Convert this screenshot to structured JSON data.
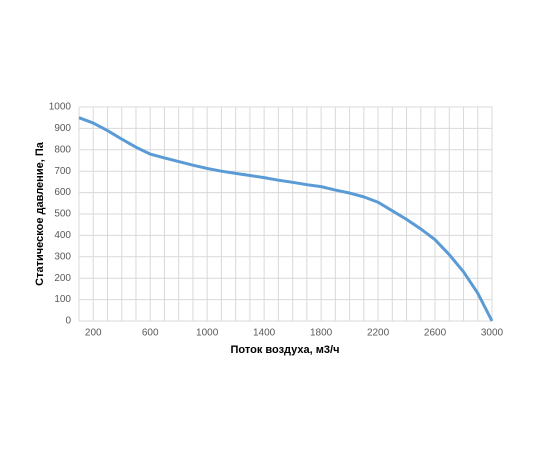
{
  "chart_data": {
    "type": "line",
    "x_label": "Поток воздуха, м3/ч",
    "y_label": "Статическое давление, Па",
    "x": [
      100,
      200,
      300,
      400,
      500,
      600,
      700,
      800,
      900,
      1000,
      1100,
      1200,
      1300,
      1400,
      1500,
      1600,
      1700,
      1800,
      1900,
      2000,
      2100,
      2200,
      2300,
      2400,
      2500,
      2600,
      2700,
      2800,
      2900,
      3000
    ],
    "series": [
      {
        "color": "#5b9bd5",
        "values": [
          950,
          925,
          890,
          850,
          812,
          780,
          762,
          745,
          728,
          713,
          700,
          690,
          680,
          670,
          658,
          648,
          637,
          628,
          612,
          598,
          580,
          555,
          515,
          475,
          430,
          380,
          310,
          230,
          130,
          0
        ]
      }
    ],
    "xlim": [
      100,
      3000
    ],
    "xticks": [
      200,
      600,
      1000,
      1400,
      1800,
      2200,
      2600,
      3000
    ],
    "xminorticks": [
      100,
      200,
      300,
      400,
      500,
      600,
      700,
      800,
      900,
      1000,
      1100,
      1200,
      1300,
      1400,
      1500,
      1600,
      1700,
      1800,
      1900,
      2000,
      2100,
      2200,
      2300,
      2400,
      2500,
      2600,
      2700,
      2800,
      2900,
      3000
    ],
    "ylim": [
      0,
      1000
    ],
    "yticks": [
      0,
      100,
      200,
      300,
      400,
      500,
      600,
      700,
      800,
      900,
      1000
    ],
    "grid": true
  }
}
